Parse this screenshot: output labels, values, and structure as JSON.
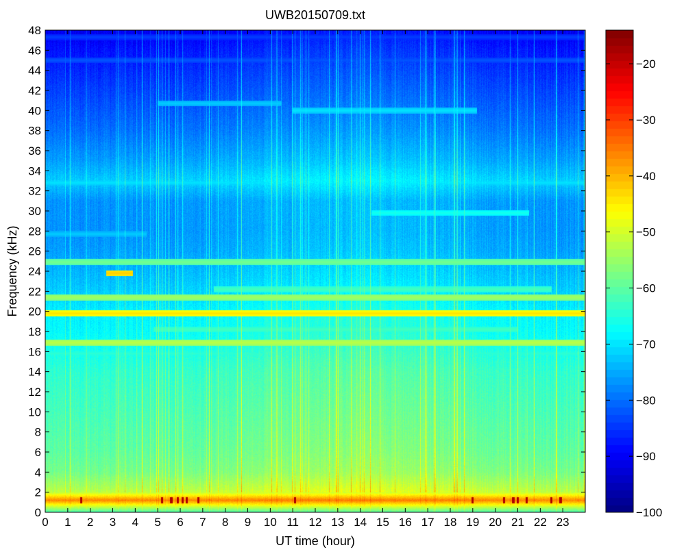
{
  "chart_data": {
    "type": "heatmap",
    "title": "UWB20150709.txt",
    "xlabel": "UT time (hour)",
    "ylabel": "Frequency (kHz)",
    "xlim": [
      0,
      24
    ],
    "ylim": [
      0,
      48
    ],
    "x_ticks": [
      0,
      1,
      2,
      3,
      4,
      5,
      6,
      7,
      8,
      9,
      10,
      11,
      12,
      13,
      14,
      15,
      16,
      17,
      18,
      19,
      20,
      21,
      22,
      23
    ],
    "y_ticks": [
      0,
      2,
      4,
      6,
      8,
      10,
      12,
      14,
      16,
      18,
      20,
      22,
      24,
      26,
      28,
      30,
      32,
      34,
      36,
      38,
      40,
      42,
      44,
      46,
      48
    ],
    "colorbar": {
      "clim": [
        -100,
        -14
      ],
      "ticks": [
        -100,
        -90,
        -80,
        -70,
        -60,
        -50,
        -40,
        -30,
        -20
      ],
      "colormap": "jet"
    },
    "background_profile": [
      {
        "freq": 0,
        "db": -62
      },
      {
        "freq": 0.6,
        "db": -50
      },
      {
        "freq": 1.2,
        "db": -36
      },
      {
        "freq": 2,
        "db": -52
      },
      {
        "freq": 4,
        "db": -58
      },
      {
        "freq": 6,
        "db": -60
      },
      {
        "freq": 10,
        "db": -62
      },
      {
        "freq": 14,
        "db": -64
      },
      {
        "freq": 16,
        "db": -66
      },
      {
        "freq": 18,
        "db": -68
      },
      {
        "freq": 20,
        "db": -69
      },
      {
        "freq": 22,
        "db": -72
      },
      {
        "freq": 24,
        "db": -74
      },
      {
        "freq": 26,
        "db": -76
      },
      {
        "freq": 28,
        "db": -77
      },
      {
        "freq": 31,
        "db": -77
      },
      {
        "freq": 33,
        "db": -72
      },
      {
        "freq": 35,
        "db": -76
      },
      {
        "freq": 38,
        "db": -80
      },
      {
        "freq": 42,
        "db": -84
      },
      {
        "freq": 46,
        "db": -88
      },
      {
        "freq": 48,
        "db": -91
      }
    ],
    "tones": [
      {
        "freq": 19.8,
        "t0": 0,
        "t1": 24,
        "db": -44
      },
      {
        "freq": 16.9,
        "t0": 0,
        "t1": 24,
        "db": -52
      },
      {
        "freq": 21.4,
        "t0": 0,
        "t1": 24,
        "db": -54
      },
      {
        "freq": 24.9,
        "t0": 0,
        "t1": 24,
        "db": -58
      },
      {
        "freq": 23.8,
        "t0": 2.7,
        "t1": 3.9,
        "db": -42
      },
      {
        "freq": 22.2,
        "t0": 7.5,
        "t1": 22.5,
        "db": -62
      },
      {
        "freq": 15.8,
        "t0": 0,
        "t1": 24,
        "db": -64
      },
      {
        "freq": 18.2,
        "t0": 4.8,
        "t1": 21,
        "db": -62
      },
      {
        "freq": 32.8,
        "t0": 0,
        "t1": 24,
        "db": -70
      },
      {
        "freq": 29.8,
        "t0": 14.5,
        "t1": 21.5,
        "db": -66
      },
      {
        "freq": 40.0,
        "t0": 11,
        "t1": 19.2,
        "db": -70
      },
      {
        "freq": 40.7,
        "t0": 5,
        "t1": 10.5,
        "db": -72
      },
      {
        "freq": 36.1,
        "t0": 0,
        "t1": 24,
        "db": -80
      },
      {
        "freq": 45.0,
        "t0": 0,
        "t1": 24,
        "db": -82
      },
      {
        "freq": 47.3,
        "t0": 0,
        "t1": 24,
        "db": -84
      },
      {
        "freq": 27.7,
        "t0": 0,
        "t1": 4.5,
        "db": -72
      }
    ],
    "hot_spots_hours": [
      1.6,
      5.2,
      5.6,
      5.9,
      6.1,
      6.3,
      6.8,
      11.1,
      19.0,
      20.4,
      20.8,
      21.0,
      21.4,
      22.5,
      22.9
    ]
  }
}
